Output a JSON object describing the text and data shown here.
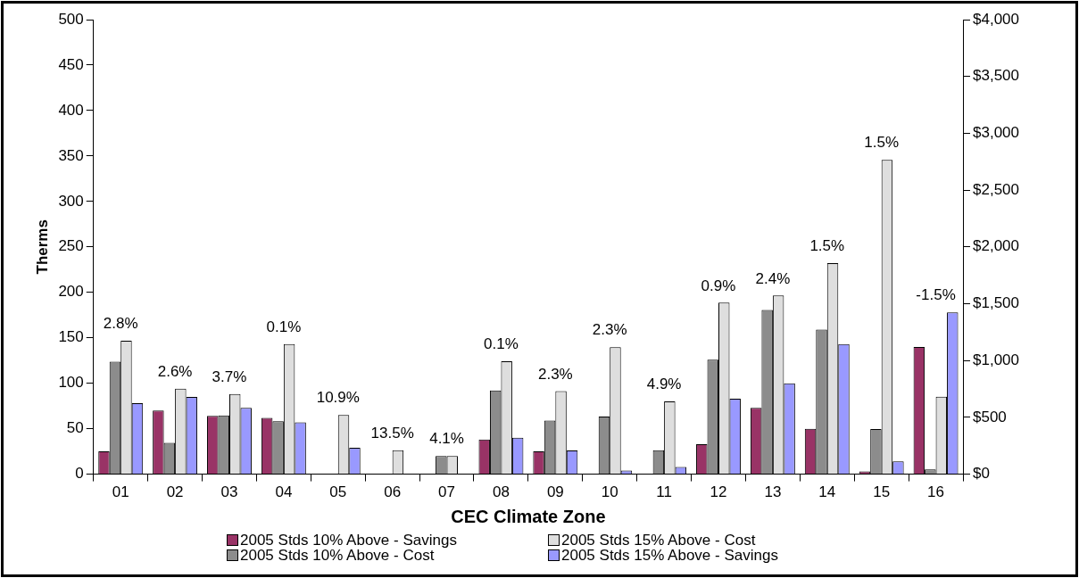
{
  "chart_data": {
    "type": "bar",
    "xlabel": "CEC Climate Zone",
    "ylabel": "Therms",
    "categories": [
      "01",
      "02",
      "03",
      "04",
      "05",
      "06",
      "07",
      "08",
      "09",
      "10",
      "11",
      "12",
      "13",
      "14",
      "15",
      "16"
    ],
    "series": [
      {
        "name": "2005 Stds 10% Above - Savings",
        "color": "#993366",
        "values": [
          25,
          70,
          64,
          62,
          null,
          null,
          null,
          38,
          25,
          null,
          null,
          33,
          73,
          50,
          3,
          140
        ]
      },
      {
        "name": "2005 Stds 10% Above - Cost",
        "color": "#8c8c8c",
        "axis": "y2",
        "values": [
          990,
          276,
          516,
          466,
          null,
          null,
          160,
          737,
          472,
          508,
          210,
          1007,
          1446,
          1272,
          398,
          42
        ]
      },
      {
        "name": "2005 Stds 15% Above - Cost",
        "color": "#dedede",
        "axis": "y2",
        "values": [
          1175,
          753,
          706,
          1145,
          521,
          210,
          160,
          993,
          731,
          1117,
          640,
          1509,
          1572,
          1857,
          2766,
          681
        ]
      },
      {
        "name": "2005 Stds 15% Above - Savings",
        "color": "#9999ff",
        "values": [
          78,
          85,
          73,
          57,
          29,
          null,
          null,
          40,
          26,
          4,
          8,
          83,
          100,
          143,
          14,
          178
        ]
      }
    ],
    "ylim": [
      0,
      500
    ],
    "yticks": [
      0,
      50,
      100,
      150,
      200,
      250,
      300,
      350,
      400,
      450,
      500
    ],
    "y2lim": [
      0,
      4000
    ],
    "y2ticks": [
      {
        "value": 0,
        "label": "$0"
      },
      {
        "value": 500,
        "label": "$500"
      },
      {
        "value": 1000,
        "label": "$1,000"
      },
      {
        "value": 1500,
        "label": "$1,500"
      },
      {
        "value": 2000,
        "label": "$2,000"
      },
      {
        "value": 2500,
        "label": "$2,500"
      },
      {
        "value": 3000,
        "label": "$3,000"
      },
      {
        "value": 3500,
        "label": "$3,500"
      },
      {
        "value": 4000,
        "label": "$4,000"
      }
    ],
    "annotations": [
      "2.8%",
      "2.6%",
      "3.7%",
      "0.1%",
      "10.9%",
      "13.5%",
      "4.1%",
      "0.1%",
      "2.3%",
      "2.3%",
      "4.9%",
      "0.9%",
      "2.4%",
      "1.5%",
      "1.5%",
      "-1.5%"
    ],
    "grid": false,
    "legend": "bottom"
  }
}
